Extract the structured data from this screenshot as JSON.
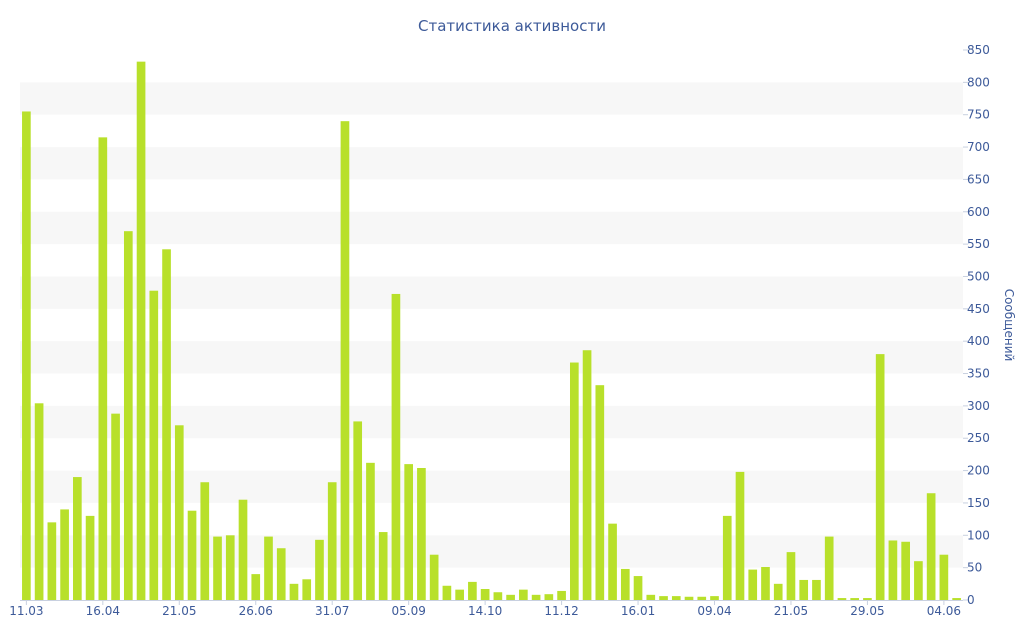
{
  "chart_data": {
    "type": "bar",
    "title": "Статистика активности",
    "xlabel": "",
    "ylabel": "Сообщений",
    "y_axis_side": "right",
    "ylim": [
      0,
      850
    ],
    "y_ticks": [
      0,
      50,
      100,
      150,
      200,
      250,
      300,
      350,
      400,
      450,
      500,
      550,
      600,
      650,
      700,
      750,
      800,
      850
    ],
    "x_tick_labels": [
      "11.03",
      "16.04",
      "21.05",
      "26.06",
      "31.07",
      "05.09",
      "14.10",
      "11.12",
      "16.01",
      "09.04",
      "21.05",
      "29.05",
      "04.06"
    ],
    "grid": "alternating horizontal bands",
    "bar_color": "#b8e02a",
    "band_color": "#f7f7f7",
    "text_color": "#3d5a99",
    "values": [
      755,
      304,
      120,
      140,
      190,
      130,
      715,
      288,
      570,
      832,
      478,
      542,
      270,
      138,
      182,
      98,
      100,
      155,
      40,
      98,
      80,
      25,
      32,
      93,
      182,
      740,
      276,
      212,
      105,
      473,
      210,
      204,
      70,
      22,
      16,
      28,
      17,
      12,
      8,
      16,
      8,
      9,
      14,
      367,
      386,
      332,
      118,
      48,
      37,
      8,
      6,
      6,
      5,
      5,
      6,
      130,
      198,
      47,
      51,
      25,
      74,
      31,
      31,
      98,
      3,
      3,
      3,
      380,
      92,
      90,
      60,
      165,
      70,
      3
    ]
  }
}
